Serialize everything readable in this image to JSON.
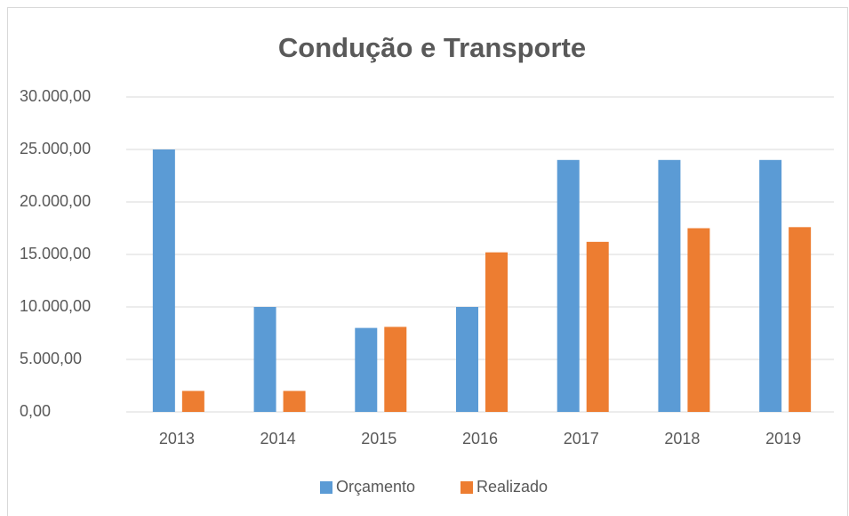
{
  "chart_data": {
    "type": "bar",
    "title": "Condução e Transporte",
    "categories": [
      "2013",
      "2014",
      "2015",
      "2016",
      "2017",
      "2018",
      "2019"
    ],
    "series": [
      {
        "name": "Orçamento",
        "color": "#5b9bd5",
        "values": [
          25000,
          10000,
          8000,
          10000,
          24000,
          24000,
          24000
        ]
      },
      {
        "name": "Realizado",
        "color": "#ed7d31",
        "values": [
          2000,
          2000,
          8100,
          15200,
          16200,
          17500,
          17600
        ]
      }
    ],
    "ylim": [
      0,
      30000
    ],
    "yticks": [
      {
        "value": 0,
        "label": "0,00"
      },
      {
        "value": 5000,
        "label": "5.000,00"
      },
      {
        "value": 10000,
        "label": "10.000,00"
      },
      {
        "value": 15000,
        "label": "15.000,00"
      },
      {
        "value": 20000,
        "label": "20.000,00"
      },
      {
        "value": 25000,
        "label": "25.000,00"
      },
      {
        "value": 30000,
        "label": "30.000,00"
      }
    ],
    "grid": true,
    "legend": "bottom"
  }
}
